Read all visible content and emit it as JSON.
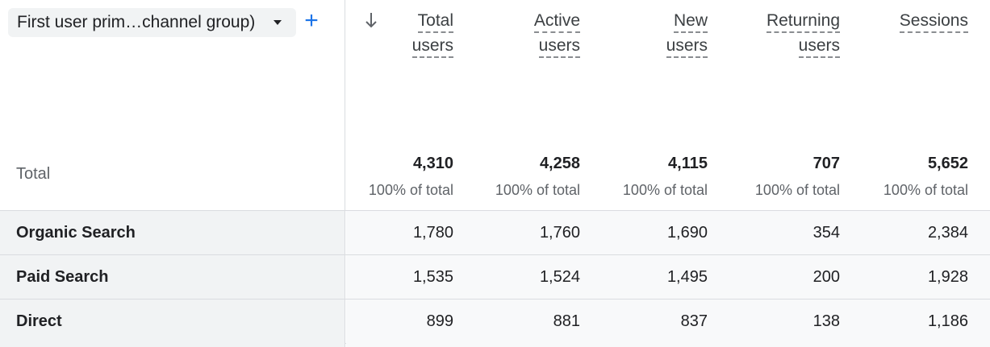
{
  "dimension": {
    "selector_label": "First user prim…channel group)",
    "add_label": "+"
  },
  "columns": [
    {
      "line1": "Total",
      "line2": "users"
    },
    {
      "line1": "Active",
      "line2": "users"
    },
    {
      "line1": "New",
      "line2": "users"
    },
    {
      "line1": "Returning",
      "line2": "users"
    },
    {
      "line1": "Sessions",
      "line2": ""
    }
  ],
  "totals": {
    "label": "Total",
    "values": [
      "4,310",
      "4,258",
      "4,115",
      "707",
      "5,652"
    ],
    "pct": [
      "100% of total",
      "100% of total",
      "100% of total",
      "100% of total",
      "100% of total"
    ]
  },
  "rows": [
    {
      "name": "Organic Search",
      "values": [
        "1,780",
        "1,760",
        "1,690",
        "354",
        "2,384"
      ]
    },
    {
      "name": "Paid Search",
      "values": [
        "1,535",
        "1,524",
        "1,495",
        "200",
        "1,928"
      ]
    },
    {
      "name": "Direct",
      "values": [
        "899",
        "881",
        "837",
        "138",
        "1,186"
      ]
    }
  ],
  "colors": {
    "accent": "#1a73e8",
    "row_dim_bg": "#f1f3f4",
    "row_metric_bg": "#f8f9fa",
    "border": "#dadce0"
  }
}
